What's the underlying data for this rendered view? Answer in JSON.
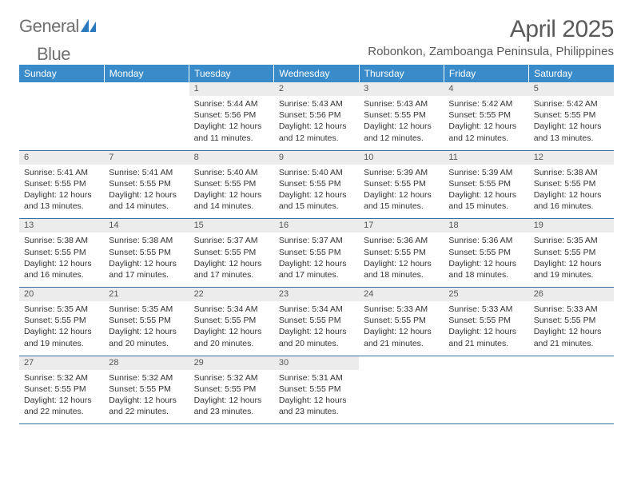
{
  "brand": {
    "general": "General",
    "blue": "Blue"
  },
  "title": "April 2025",
  "subtitle": "Robonkon, Zamboanga Peninsula, Philippines",
  "header_color": "#3a8bc9",
  "daynum_bg": "#ececec",
  "rule_color": "#3a6fa0",
  "weekdays": [
    "Sunday",
    "Monday",
    "Tuesday",
    "Wednesday",
    "Thursday",
    "Friday",
    "Saturday"
  ],
  "weeks": [
    [
      null,
      null,
      {
        "n": "1",
        "sr": "5:44 AM",
        "ss": "5:56 PM",
        "dl": "12 hours and 11 minutes."
      },
      {
        "n": "2",
        "sr": "5:43 AM",
        "ss": "5:56 PM",
        "dl": "12 hours and 12 minutes."
      },
      {
        "n": "3",
        "sr": "5:43 AM",
        "ss": "5:55 PM",
        "dl": "12 hours and 12 minutes."
      },
      {
        "n": "4",
        "sr": "5:42 AM",
        "ss": "5:55 PM",
        "dl": "12 hours and 12 minutes."
      },
      {
        "n": "5",
        "sr": "5:42 AM",
        "ss": "5:55 PM",
        "dl": "12 hours and 13 minutes."
      }
    ],
    [
      {
        "n": "6",
        "sr": "5:41 AM",
        "ss": "5:55 PM",
        "dl": "12 hours and 13 minutes."
      },
      {
        "n": "7",
        "sr": "5:41 AM",
        "ss": "5:55 PM",
        "dl": "12 hours and 14 minutes."
      },
      {
        "n": "8",
        "sr": "5:40 AM",
        "ss": "5:55 PM",
        "dl": "12 hours and 14 minutes."
      },
      {
        "n": "9",
        "sr": "5:40 AM",
        "ss": "5:55 PM",
        "dl": "12 hours and 15 minutes."
      },
      {
        "n": "10",
        "sr": "5:39 AM",
        "ss": "5:55 PM",
        "dl": "12 hours and 15 minutes."
      },
      {
        "n": "11",
        "sr": "5:39 AM",
        "ss": "5:55 PM",
        "dl": "12 hours and 15 minutes."
      },
      {
        "n": "12",
        "sr": "5:38 AM",
        "ss": "5:55 PM",
        "dl": "12 hours and 16 minutes."
      }
    ],
    [
      {
        "n": "13",
        "sr": "5:38 AM",
        "ss": "5:55 PM",
        "dl": "12 hours and 16 minutes."
      },
      {
        "n": "14",
        "sr": "5:38 AM",
        "ss": "5:55 PM",
        "dl": "12 hours and 17 minutes."
      },
      {
        "n": "15",
        "sr": "5:37 AM",
        "ss": "5:55 PM",
        "dl": "12 hours and 17 minutes."
      },
      {
        "n": "16",
        "sr": "5:37 AM",
        "ss": "5:55 PM",
        "dl": "12 hours and 17 minutes."
      },
      {
        "n": "17",
        "sr": "5:36 AM",
        "ss": "5:55 PM",
        "dl": "12 hours and 18 minutes."
      },
      {
        "n": "18",
        "sr": "5:36 AM",
        "ss": "5:55 PM",
        "dl": "12 hours and 18 minutes."
      },
      {
        "n": "19",
        "sr": "5:35 AM",
        "ss": "5:55 PM",
        "dl": "12 hours and 19 minutes."
      }
    ],
    [
      {
        "n": "20",
        "sr": "5:35 AM",
        "ss": "5:55 PM",
        "dl": "12 hours and 19 minutes."
      },
      {
        "n": "21",
        "sr": "5:35 AM",
        "ss": "5:55 PM",
        "dl": "12 hours and 20 minutes."
      },
      {
        "n": "22",
        "sr": "5:34 AM",
        "ss": "5:55 PM",
        "dl": "12 hours and 20 minutes."
      },
      {
        "n": "23",
        "sr": "5:34 AM",
        "ss": "5:55 PM",
        "dl": "12 hours and 20 minutes."
      },
      {
        "n": "24",
        "sr": "5:33 AM",
        "ss": "5:55 PM",
        "dl": "12 hours and 21 minutes."
      },
      {
        "n": "25",
        "sr": "5:33 AM",
        "ss": "5:55 PM",
        "dl": "12 hours and 21 minutes."
      },
      {
        "n": "26",
        "sr": "5:33 AM",
        "ss": "5:55 PM",
        "dl": "12 hours and 21 minutes."
      }
    ],
    [
      {
        "n": "27",
        "sr": "5:32 AM",
        "ss": "5:55 PM",
        "dl": "12 hours and 22 minutes."
      },
      {
        "n": "28",
        "sr": "5:32 AM",
        "ss": "5:55 PM",
        "dl": "12 hours and 22 minutes."
      },
      {
        "n": "29",
        "sr": "5:32 AM",
        "ss": "5:55 PM",
        "dl": "12 hours and 23 minutes."
      },
      {
        "n": "30",
        "sr": "5:31 AM",
        "ss": "5:55 PM",
        "dl": "12 hours and 23 minutes."
      },
      null,
      null,
      null
    ]
  ],
  "labels": {
    "sunrise": "Sunrise:",
    "sunset": "Sunset:",
    "daylight": "Daylight:"
  }
}
